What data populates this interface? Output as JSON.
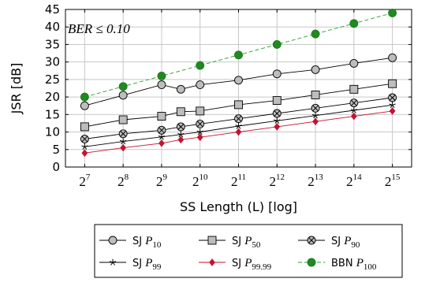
{
  "chart_data": {
    "type": "line",
    "title": "",
    "xlabel": "SS Length (L) [log]",
    "ylabel": "JSR [dB]",
    "annotation": "BER ≤ 0.10",
    "ylim": [
      0,
      45
    ],
    "yticks": [
      0,
      5,
      10,
      15,
      20,
      25,
      30,
      35,
      40,
      45
    ],
    "x_tick_base": "2",
    "x_tick_exponents": [
      "7",
      "8",
      "9",
      "10",
      "11",
      "12",
      "13",
      "14",
      "15"
    ],
    "x_scale": "log2",
    "grid": true,
    "legend_position": "bottom-outside",
    "series": [
      {
        "name": "SJ P10",
        "name_prefix": "SJ",
        "name_sub": "10",
        "color": "#000000",
        "dash": "solid",
        "marker": "circle",
        "marker_fill": "#bdbdbd",
        "x": [
          7,
          8,
          9,
          9.5,
          10,
          11,
          12,
          13,
          14,
          15
        ],
        "y": [
          17.5,
          20.5,
          23.5,
          22.2,
          23.5,
          24.8,
          26.6,
          27.8,
          29.6,
          31.2
        ]
      },
      {
        "name": "SJ P50",
        "name_prefix": "SJ",
        "name_sub": "50",
        "color": "#000000",
        "dash": "solid",
        "marker": "square",
        "marker_fill": "#bdbdbd",
        "x": [
          7,
          8,
          9,
          9.5,
          10,
          11,
          12,
          13,
          14,
          15
        ],
        "y": [
          11.5,
          13.5,
          14.5,
          15.8,
          16.0,
          17.8,
          19.0,
          20.6,
          22.2,
          23.8
        ]
      },
      {
        "name": "SJ P90",
        "name_prefix": "SJ",
        "name_sub": "90",
        "color": "#000000",
        "dash": "solid",
        "marker": "otimes",
        "marker_fill": "#bdbdbd",
        "x": [
          7,
          8,
          9,
          9.5,
          10,
          11,
          12,
          13,
          14,
          15
        ],
        "y": [
          8.0,
          9.5,
          10.5,
          11.5,
          12.3,
          13.8,
          15.3,
          16.8,
          18.3,
          19.8
        ]
      },
      {
        "name": "SJ P99",
        "name_prefix": "SJ",
        "name_sub": "99",
        "color": "#000000",
        "dash": "solid",
        "marker": "star",
        "marker_fill": "#000000",
        "x": [
          7,
          8,
          9,
          9.5,
          10,
          11,
          12,
          13,
          14,
          15
        ],
        "y": [
          5.8,
          7.3,
          8.6,
          9.3,
          10.0,
          11.7,
          13.2,
          14.7,
          16.2,
          17.7
        ]
      },
      {
        "name": "SJ P99.99",
        "name_prefix": "SJ",
        "name_sub": "99.99",
        "color": "#c41230",
        "dash": "solid",
        "marker": "diamond",
        "marker_fill": "#c41230",
        "x": [
          7,
          8,
          9,
          9.5,
          10,
          11,
          12,
          13,
          14,
          15
        ],
        "y": [
          4.0,
          5.5,
          6.8,
          7.8,
          8.5,
          10.0,
          11.5,
          13.0,
          14.5,
          16.0
        ]
      },
      {
        "name": "BBN P100",
        "name_prefix": "BBN",
        "name_sub": "100",
        "color": "#2a9d2a",
        "dash": "dashed",
        "marker": "circle",
        "marker_fill": "#1f8a1f",
        "x": [
          7,
          8,
          9,
          10,
          11,
          12,
          13,
          14,
          15
        ],
        "y": [
          20.0,
          23.0,
          26.0,
          29.0,
          32.0,
          35.0,
          38.0,
          41.0,
          44.0
        ]
      }
    ]
  }
}
